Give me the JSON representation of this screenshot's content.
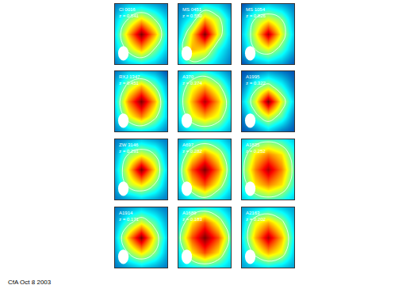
{
  "chart_data": [
    {
      "type": "contour",
      "title": "Cl 0016",
      "subtitle": "z = 0.541",
      "color": "Jet",
      "tick_labels": false,
      "z": [
        [
          0.2,
          0.3,
          0.35,
          0.3,
          0.2
        ],
        [
          0.3,
          0.55,
          0.7,
          0.5,
          0.3
        ],
        [
          0.35,
          0.7,
          1.0,
          0.7,
          0.35
        ],
        [
          0.3,
          0.5,
          0.65,
          0.5,
          0.3
        ],
        [
          0.2,
          0.3,
          0.3,
          0.25,
          0.2
        ]
      ]
    },
    {
      "type": "contour",
      "title": "MS 0451",
      "subtitle": "z = 0.550",
      "color": "Jet",
      "tick_labels": false,
      "z": [
        [
          0.3,
          0.45,
          0.4,
          0.3,
          0.2
        ],
        [
          0.4,
          0.7,
          0.65,
          0.4,
          0.25
        ],
        [
          0.3,
          0.65,
          1.0,
          0.6,
          0.3
        ],
        [
          0.25,
          0.4,
          0.7,
          0.55,
          0.3
        ],
        [
          0.2,
          0.25,
          0.35,
          0.3,
          0.2
        ]
      ]
    },
    {
      "type": "contour",
      "title": "MS 1054",
      "subtitle": "z = 0.826",
      "color": "Jet",
      "tick_labels": false,
      "z": [
        [
          0.15,
          0.25,
          0.3,
          0.25,
          0.15
        ],
        [
          0.25,
          0.5,
          0.6,
          0.45,
          0.25
        ],
        [
          0.3,
          0.6,
          0.95,
          0.6,
          0.3
        ],
        [
          0.25,
          0.5,
          0.6,
          0.5,
          0.25
        ],
        [
          0.15,
          0.25,
          0.3,
          0.25,
          0.2
        ]
      ]
    },
    {
      "type": "contour",
      "title": "RXJ 1347",
      "subtitle": "z = 0.451",
      "color": "Jet",
      "tick_labels": false,
      "z": [
        [
          0.2,
          0.3,
          0.35,
          0.3,
          0.2
        ],
        [
          0.3,
          0.6,
          0.75,
          0.55,
          0.3
        ],
        [
          0.35,
          0.75,
          1.0,
          0.7,
          0.3
        ],
        [
          0.3,
          0.55,
          0.7,
          0.5,
          0.25
        ],
        [
          0.2,
          0.3,
          0.3,
          0.25,
          0.15
        ]
      ]
    },
    {
      "type": "contour",
      "title": "A370",
      "subtitle": "z = 0.374",
      "color": "Jet",
      "tick_labels": false,
      "z": [
        [
          0.25,
          0.35,
          0.4,
          0.35,
          0.25
        ],
        [
          0.35,
          0.6,
          0.7,
          0.6,
          0.35
        ],
        [
          0.4,
          0.7,
          0.95,
          0.7,
          0.4
        ],
        [
          0.35,
          0.6,
          0.7,
          0.55,
          0.3
        ],
        [
          0.25,
          0.35,
          0.4,
          0.3,
          0.2
        ]
      ]
    },
    {
      "type": "contour",
      "title": "A1995",
      "subtitle": "z = 0.322",
      "color": "Jet",
      "tick_labels": false,
      "z": [
        [
          0.15,
          0.2,
          0.3,
          0.2,
          0.15
        ],
        [
          0.2,
          0.45,
          0.6,
          0.45,
          0.2
        ],
        [
          0.3,
          0.6,
          1.0,
          0.6,
          0.3
        ],
        [
          0.2,
          0.45,
          0.55,
          0.4,
          0.2
        ],
        [
          0.15,
          0.2,
          0.25,
          0.2,
          0.15
        ]
      ]
    },
    {
      "type": "contour",
      "title": "ZW 3146",
      "subtitle": "z = 0.291",
      "color": "Jet",
      "tick_labels": false,
      "z": [
        [
          0.2,
          0.25,
          0.3,
          0.25,
          0.2
        ],
        [
          0.25,
          0.55,
          0.65,
          0.5,
          0.25
        ],
        [
          0.3,
          0.65,
          1.0,
          0.65,
          0.3
        ],
        [
          0.25,
          0.5,
          0.6,
          0.5,
          0.25
        ],
        [
          0.2,
          0.25,
          0.3,
          0.25,
          0.2
        ]
      ]
    },
    {
      "type": "contour",
      "title": "A697",
      "subtitle": "z = 0.282",
      "color": "Jet",
      "tick_labels": false,
      "z": [
        [
          0.25,
          0.35,
          0.45,
          0.35,
          0.25
        ],
        [
          0.35,
          0.65,
          0.8,
          0.6,
          0.35
        ],
        [
          0.4,
          0.8,
          1.0,
          0.75,
          0.4
        ],
        [
          0.35,
          0.6,
          0.75,
          0.6,
          0.35
        ],
        [
          0.25,
          0.35,
          0.4,
          0.35,
          0.25
        ]
      ]
    },
    {
      "type": "contour",
      "title": "A1835",
      "subtitle": "z = 0.252",
      "color": "Jet",
      "tick_labels": false,
      "z": [
        [
          0.3,
          0.4,
          0.45,
          0.4,
          0.3
        ],
        [
          0.4,
          0.65,
          0.75,
          0.65,
          0.4
        ],
        [
          0.45,
          0.75,
          0.95,
          0.75,
          0.45
        ],
        [
          0.4,
          0.65,
          0.75,
          0.65,
          0.4
        ],
        [
          0.3,
          0.4,
          0.45,
          0.4,
          0.3
        ]
      ]
    },
    {
      "type": "contour",
      "title": "A1914",
      "subtitle": "z = 0.171",
      "color": "Jet",
      "tick_labels": false,
      "z": [
        [
          0.2,
          0.25,
          0.3,
          0.25,
          0.2
        ],
        [
          0.25,
          0.5,
          0.65,
          0.5,
          0.25
        ],
        [
          0.3,
          0.7,
          1.0,
          0.6,
          0.3
        ],
        [
          0.25,
          0.45,
          0.6,
          0.45,
          0.25
        ],
        [
          0.2,
          0.25,
          0.3,
          0.25,
          0.2
        ]
      ]
    },
    {
      "type": "contour",
      "title": "A1689",
      "subtitle": "z = 0.183",
      "color": "Jet",
      "tick_labels": false,
      "z": [
        [
          0.3,
          0.35,
          0.4,
          0.35,
          0.3
        ],
        [
          0.35,
          0.65,
          0.8,
          0.65,
          0.35
        ],
        [
          0.45,
          0.8,
          1.0,
          0.8,
          0.45
        ],
        [
          0.35,
          0.65,
          0.8,
          0.6,
          0.35
        ],
        [
          0.3,
          0.35,
          0.4,
          0.35,
          0.25
        ]
      ]
    },
    {
      "type": "contour",
      "title": "A2163",
      "subtitle": "z = 0.202",
      "color": "Jet",
      "tick_labels": false,
      "z": [
        [
          0.25,
          0.3,
          0.35,
          0.3,
          0.25
        ],
        [
          0.3,
          0.55,
          0.7,
          0.6,
          0.3
        ],
        [
          0.35,
          0.7,
          0.95,
          0.7,
          0.35
        ],
        [
          0.3,
          0.6,
          0.7,
          0.55,
          0.3
        ],
        [
          0.25,
          0.3,
          0.35,
          0.3,
          0.25
        ]
      ]
    }
  ],
  "color_range": [
    0,
    1
  ],
  "footer": "CfA Oct 8 2003"
}
